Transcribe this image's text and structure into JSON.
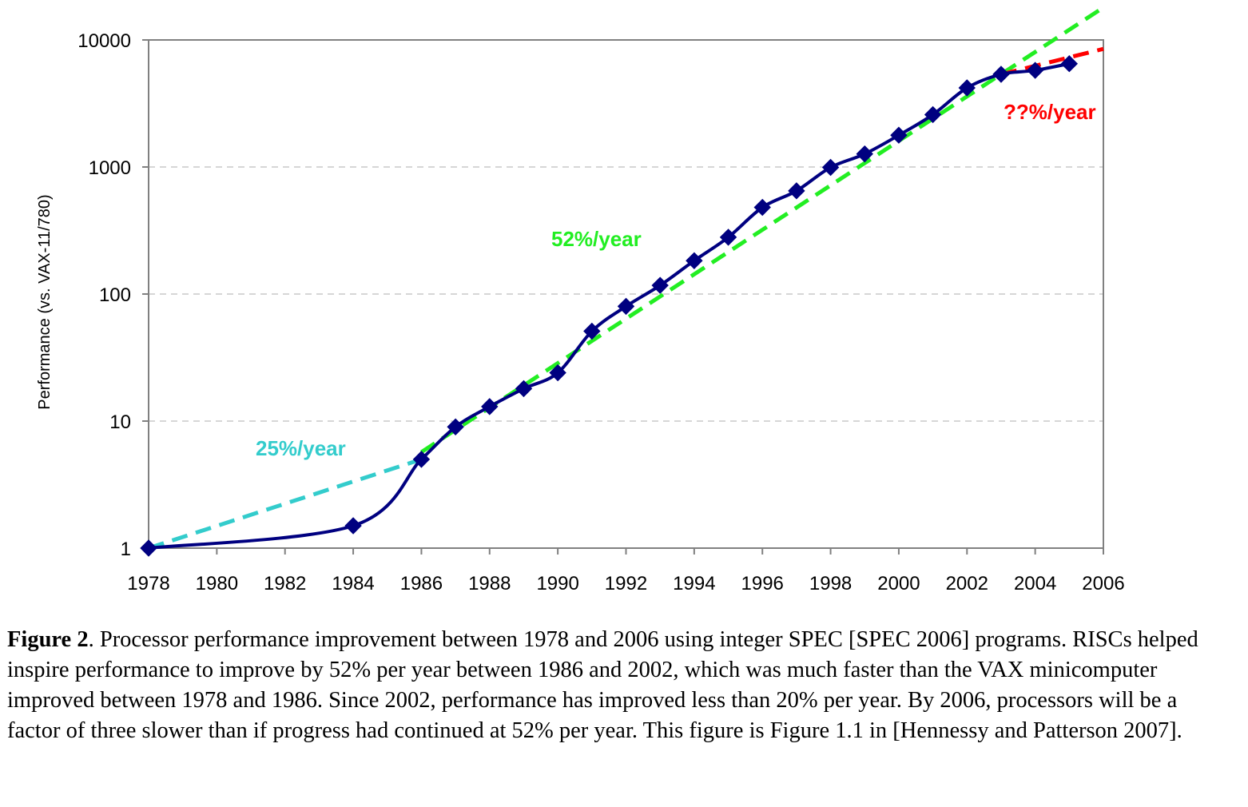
{
  "chart_data": {
    "type": "line",
    "title": "",
    "xlabel": "",
    "ylabel": "Performance (vs. VAX-11/780)",
    "yscale": "log",
    "xlim": [
      1978,
      2006
    ],
    "ylim": [
      1,
      10000
    ],
    "x_ticks": [
      "1978",
      "1980",
      "1982",
      "1984",
      "1986",
      "1988",
      "1990",
      "1992",
      "1994",
      "1996",
      "1998",
      "2000",
      "2002",
      "2004",
      "2006"
    ],
    "y_ticks": [
      "1",
      "10",
      "100",
      "1000",
      "10000"
    ],
    "grid": "horizontal dashed",
    "series": [
      {
        "color": "#000080",
        "marker": "diamond",
        "x": [
          1978,
          1984,
          1986,
          1987,
          1988,
          1989,
          1990,
          1991,
          1992,
          1993,
          1994,
          1995,
          1996,
          1997,
          1998,
          1999,
          2000,
          2001,
          2002,
          2003,
          2004,
          2005
        ],
        "y": [
          1,
          1.5,
          5,
          9,
          13,
          18,
          24,
          51,
          80,
          117,
          183,
          280,
          481,
          649,
          993,
          1267,
          1779,
          2584,
          4195,
          5364,
          5764,
          6505
        ]
      }
    ],
    "trend_lines": [
      {
        "label": "25%/year",
        "color": "#33CCCC",
        "x": [
          1978,
          1986
        ],
        "y": [
          1,
          5
        ]
      },
      {
        "label": "52%/year",
        "color": "#22EE22",
        "x": [
          1986,
          2006
        ],
        "y": [
          5.7,
          18000
        ]
      },
      {
        "label": "??%/year",
        "color": "#FF0000",
        "x": [
          2003,
          2006
        ],
        "y": [
          5364,
          8500
        ]
      }
    ]
  },
  "caption": {
    "figure_label": "Figure 2",
    "text": ". Processor performance improvement between 1978 and 2006 using integer SPEC [SPEC 2006] programs. RISCs helped inspire performance to improve by 52% per year between 1986 and 2002, which was much faster than the VAX minicomputer improved between 1978 and 1986. Since 2002, performance has improved less than 20% per year. By 2006, processors will be a factor of three slower than if progress had continued at 52% per year. This figure is Figure 1.1 in [Hennessy and Patterson 2007]."
  }
}
